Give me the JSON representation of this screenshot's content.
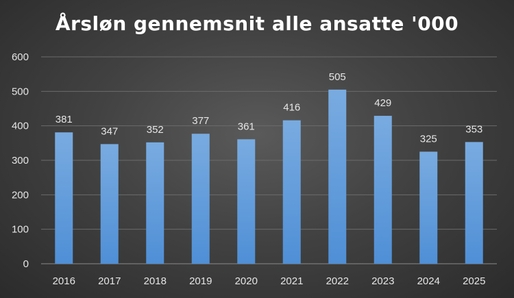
{
  "chart_data": {
    "type": "bar",
    "title": "Årsløn gennemsnit alle ansatte '000",
    "xlabel": "",
    "ylabel": "",
    "categories": [
      "2016",
      "2017",
      "2018",
      "2019",
      "2020",
      "2021",
      "2022",
      "2023",
      "2024",
      "2025"
    ],
    "values": [
      381,
      347,
      352,
      377,
      361,
      416,
      505,
      429,
      325,
      353
    ],
    "ylim": [
      0,
      600
    ],
    "yticks": [
      0,
      100,
      200,
      300,
      400,
      500,
      600
    ],
    "grid": true,
    "legend": "none",
    "data_labels": true,
    "colors": {
      "bar_top": "#79abe0",
      "bar_bottom": "#4f8fd6",
      "gridline": "#6b6b6b",
      "axis": "#8a8a8a",
      "text": "#e6e6e6",
      "title": "#ffffff"
    }
  }
}
